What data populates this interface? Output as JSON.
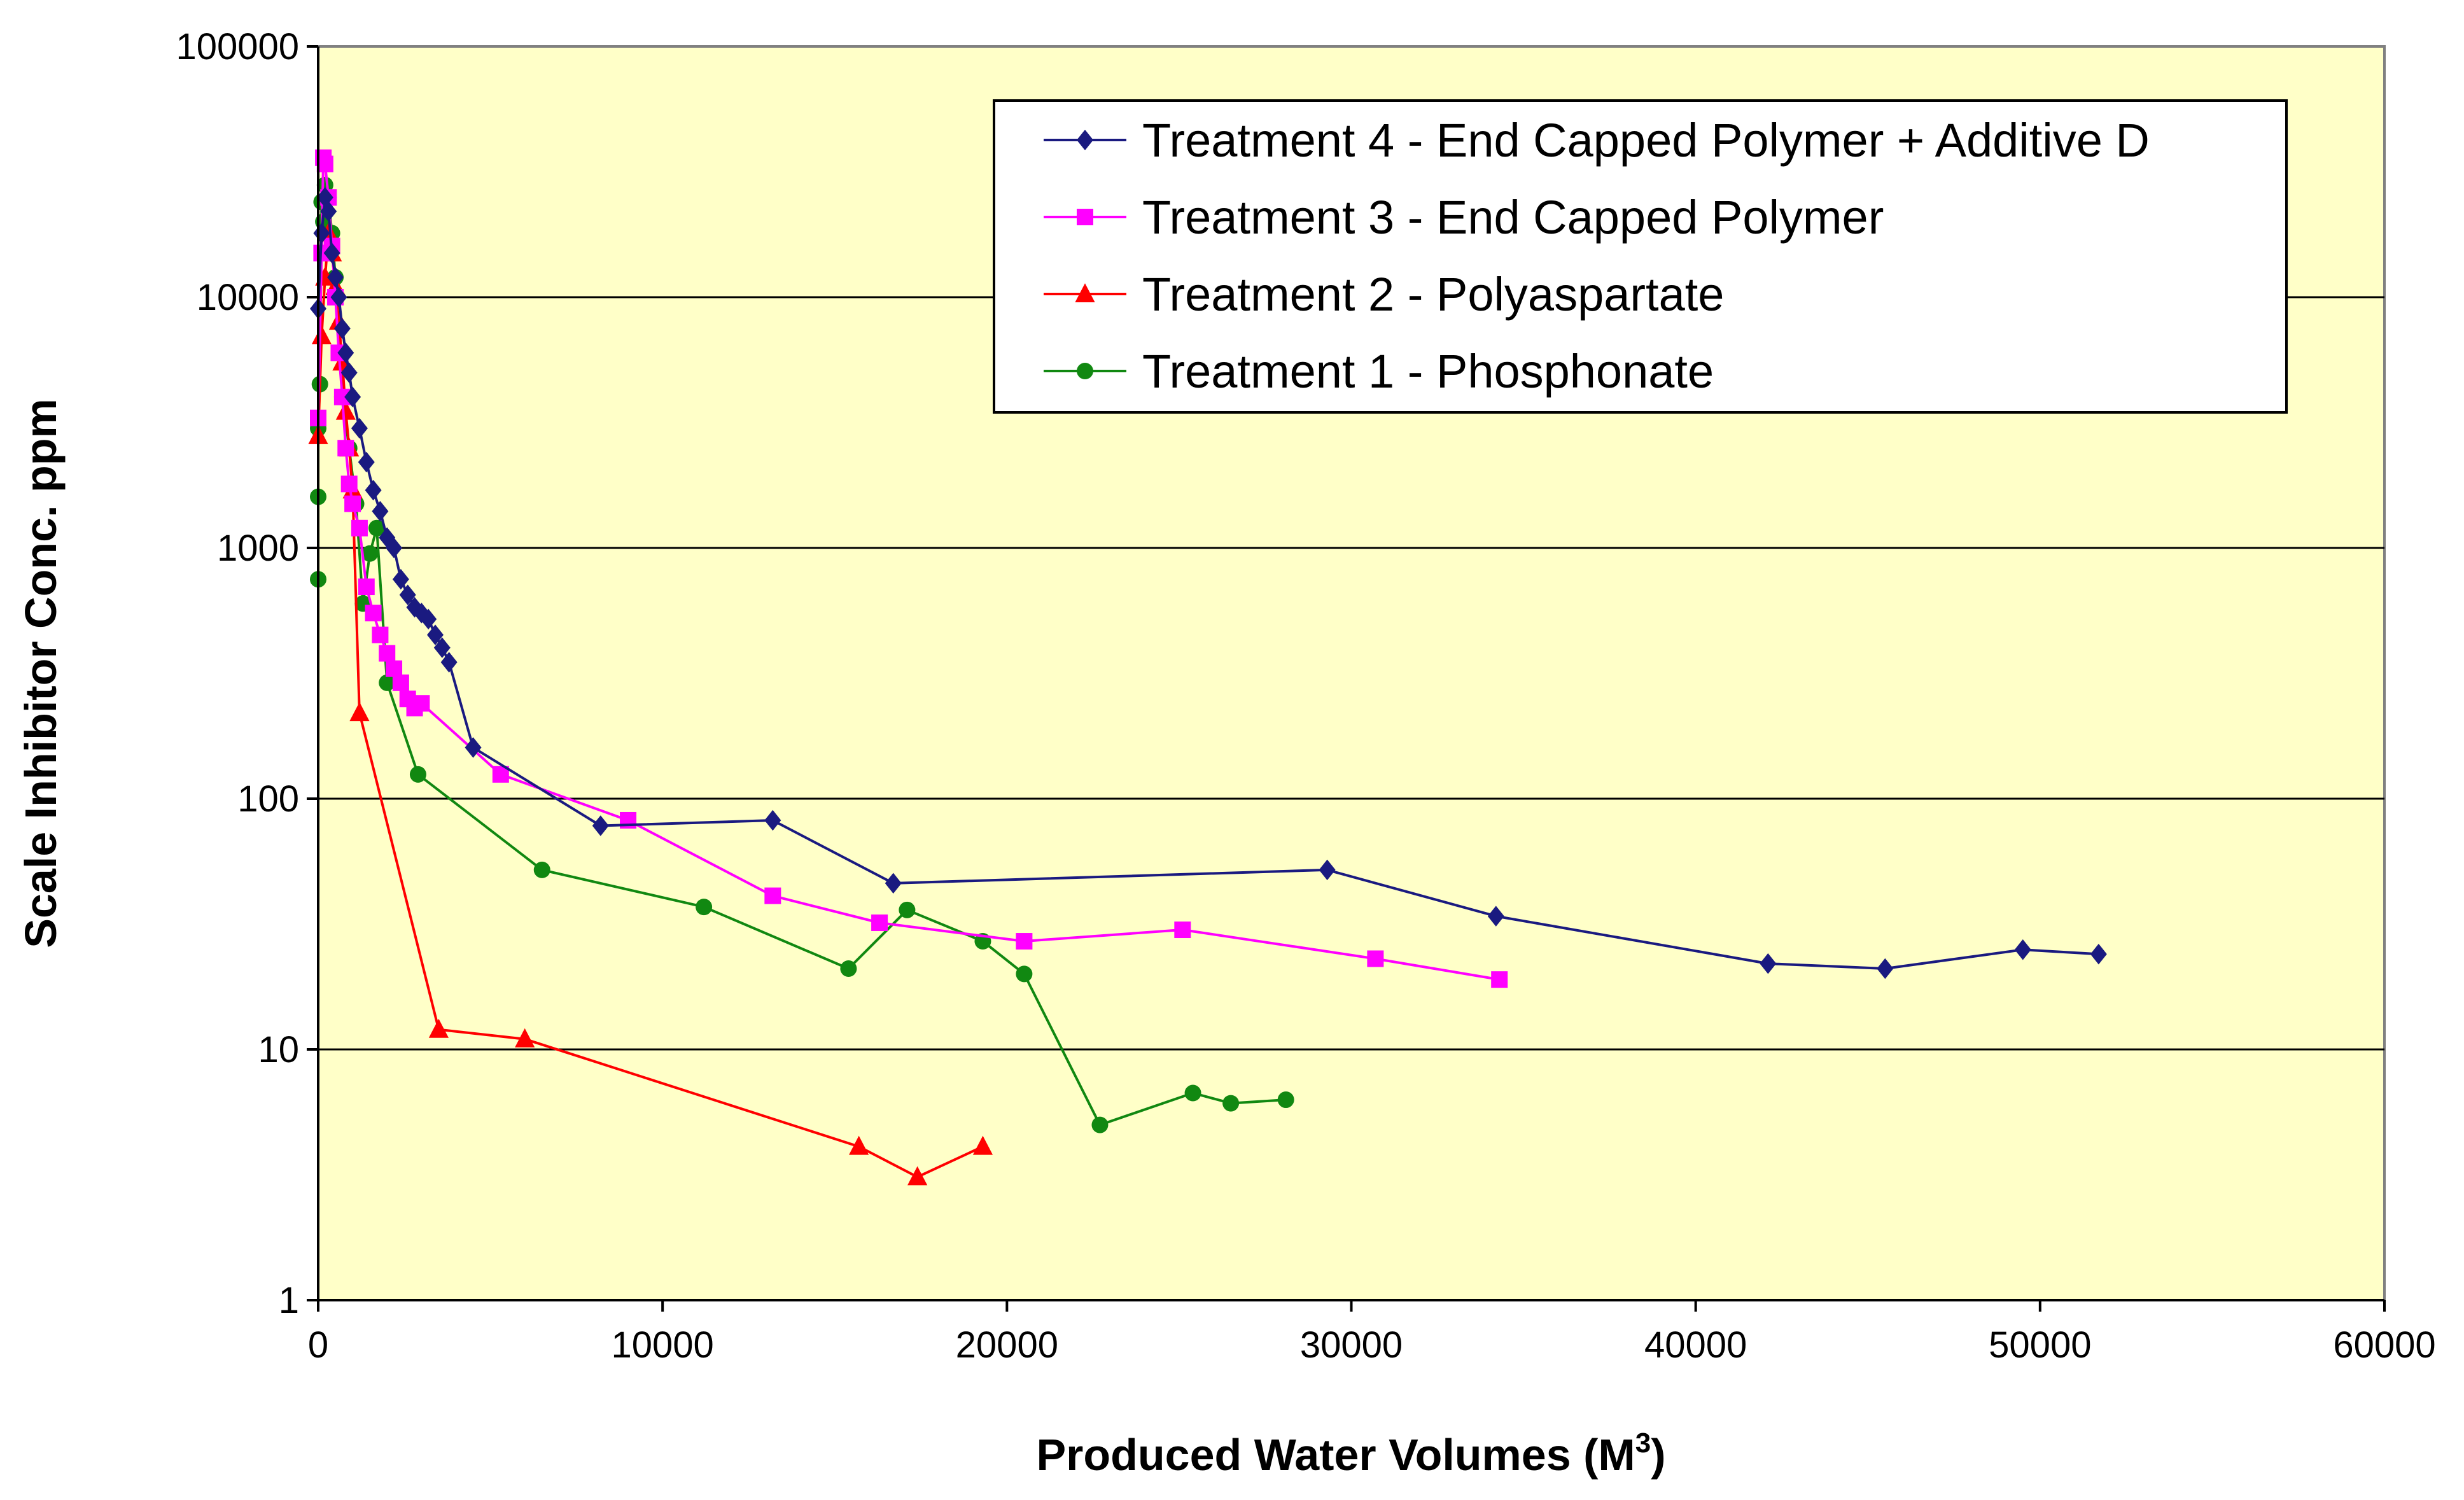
{
  "chart_data": {
    "type": "line",
    "title": "",
    "xlabel": "Produced Water Volumes (M",
    "xlabel_sup": "3",
    "xlabel_close": ")",
    "ylabel": "Scale Inhibitor Conc. ppm",
    "xlim": [
      0,
      60000
    ],
    "ylim": [
      1,
      100000
    ],
    "yscale": "log",
    "x_ticks": [
      0,
      10000,
      20000,
      30000,
      40000,
      50000,
      60000
    ],
    "x_tick_labels": [
      "0",
      "10000",
      "20000",
      "30000",
      "40000",
      "50000",
      "60000"
    ],
    "y_ticks": [
      1,
      10,
      100,
      1000,
      10000,
      100000
    ],
    "y_tick_labels": [
      "1",
      "10",
      "100",
      "1000",
      "10000",
      "100000"
    ],
    "grid": "horizontal",
    "legend_position": "top-right",
    "plot_background": "#ffffc8",
    "series": [
      {
        "name": "Treatment 4 - End Capped Polymer + Additive D",
        "color": "#1a1a80",
        "marker": "diamond",
        "x": [
          0,
          100,
          200,
          300,
          400,
          500,
          600,
          700,
          800,
          900,
          1000,
          1200,
          1400,
          1600,
          1800,
          2000,
          2200,
          2400,
          2600,
          2800,
          3000,
          3200,
          3400,
          3600,
          3800,
          4500,
          8200,
          13200,
          16700,
          29300,
          34200,
          42100,
          45500,
          49500,
          51700
        ],
        "y": [
          9000,
          18000,
          25000,
          22000,
          15000,
          12000,
          10000,
          7500,
          6000,
          5000,
          4000,
          3000,
          2200,
          1700,
          1400,
          1100,
          1000,
          750,
          650,
          580,
          550,
          520,
          450,
          400,
          350,
          160,
          78,
          82,
          46,
          52,
          34,
          22,
          21,
          25,
          24
        ]
      },
      {
        "name": "Treatment 3 - End Capped Polymer",
        "color": "#ff00ff",
        "marker": "square",
        "x": [
          0,
          100,
          150,
          200,
          300,
          400,
          500,
          600,
          700,
          800,
          900,
          1000,
          1200,
          1400,
          1600,
          1800,
          2000,
          2200,
          2400,
          2600,
          2800,
          3000,
          5300,
          9000,
          13200,
          16300,
          20500,
          25100,
          30700,
          34300
        ],
        "y": [
          3300,
          15000,
          36000,
          34000,
          25000,
          16000,
          10000,
          6000,
          4000,
          2500,
          1800,
          1500,
          1200,
          700,
          550,
          450,
          380,
          330,
          290,
          250,
          230,
          240,
          125,
          82,
          41,
          32,
          27,
          30,
          23,
          19
        ]
      },
      {
        "name": "Treatment 2 - Polyaspartate",
        "color": "#ff0000",
        "marker": "triangle",
        "x": [
          0,
          100,
          200,
          300,
          400,
          500,
          600,
          700,
          800,
          900,
          1000,
          1200,
          3500,
          6000,
          15700,
          17400,
          19300
        ],
        "y": [
          2800,
          7000,
          12000,
          18000,
          15000,
          11000,
          8000,
          5500,
          3500,
          2500,
          1700,
          220,
          12,
          11,
          4.1,
          3.1,
          4.1
        ]
      },
      {
        "name": "Treatment 1 - Phosphonate",
        "color": "#118811",
        "marker": "circle",
        "x": [
          0,
          0,
          0,
          50,
          100,
          150,
          200,
          300,
          400,
          500,
          700,
          900,
          1100,
          1300,
          1500,
          1700,
          2000,
          2900,
          6500,
          11200,
          15400,
          17100,
          19300,
          20500,
          22700,
          25400,
          26500,
          28100
        ],
        "y": [
          750,
          1600,
          3000,
          4500,
          24000,
          20000,
          28000,
          25000,
          18000,
          12000,
          4000,
          2500,
          1500,
          600,
          950,
          1200,
          290,
          125,
          52,
          37,
          21,
          36,
          27,
          20,
          5,
          6.7,
          6.1,
          6.3
        ]
      }
    ]
  }
}
